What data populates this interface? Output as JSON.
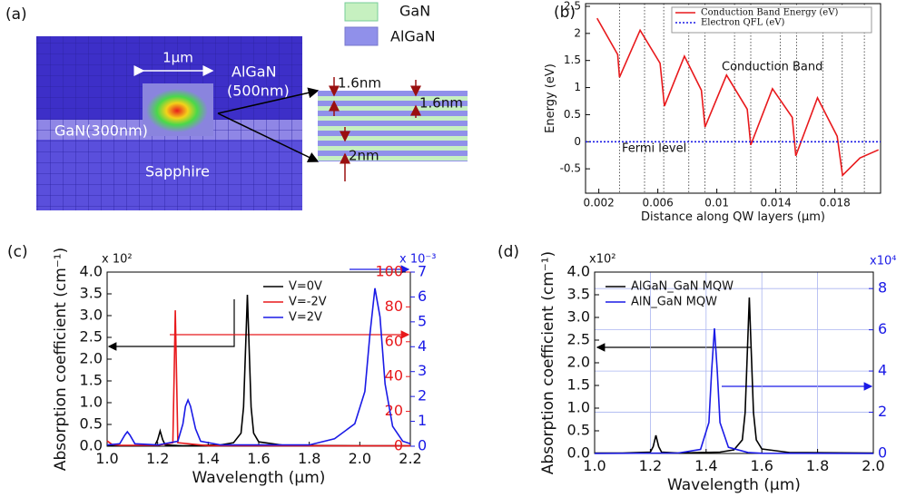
{
  "diagram": {
    "label": "(a)",
    "legend": [
      "GaN",
      "AlGaN"
    ],
    "texts": {
      "width": "1μm",
      "algan": "AlGaN",
      "algan_thickness": "(500nm)",
      "gan": "GaN(300nm)",
      "substrate": "Sapphire",
      "layer1": "1.6nm",
      "layer2": "1.6nm",
      "layer3": "2nm"
    }
  },
  "chart_data": [
    {
      "type": "line",
      "label": "(b)",
      "x_label": "Distance along QW layers (μm)",
      "y_label": "Energy (eV)",
      "annotations": [
        "Conduction Band",
        "Fermi level"
      ],
      "legend": "upper right",
      "xlim": [
        0.0011,
        0.0211
      ],
      "xticks": [
        0.002,
        0.006,
        0.01,
        0.014,
        0.018
      ],
      "ylim": [
        -0.95,
        2.55
      ],
      "yticks": [
        -0.5,
        0,
        0.5,
        1,
        1.5,
        2,
        2.5
      ],
      "vlines": [
        0.0034,
        0.0051,
        0.0064,
        0.0081,
        0.0092,
        0.0112,
        0.0123,
        0.0143,
        0.0154,
        0.0172,
        0.0185,
        0.02
      ],
      "series": [
        {
          "name": "Conduction Band Energy (eV)",
          "color": "#e8191c",
          "style": "solid",
          "x": [
            0.00188,
            0.00328,
            0.0034,
            0.0048,
            0.00615,
            0.00645,
            0.0078,
            0.00895,
            0.0092,
            0.01066,
            0.01206,
            0.0123,
            0.01377,
            0.01511,
            0.01535,
            0.01682,
            0.01816,
            0.01852,
            0.0197,
            0.02096
          ],
          "values": [
            2.28,
            1.61,
            1.19,
            2.06,
            1.45,
            0.66,
            1.58,
            0.95,
            0.27,
            1.23,
            0.6,
            -0.06,
            0.98,
            0.45,
            -0.26,
            0.81,
            0.1,
            -0.62,
            -0.3,
            -0.15
          ]
        },
        {
          "name": "Electron QFL (eV)",
          "color": "#1a1ae6",
          "style": "dotted",
          "x": [
            0.0011,
            0.0211
          ],
          "values": [
            0,
            0
          ]
        }
      ]
    },
    {
      "type": "line",
      "label": "(c)",
      "x_label": "Wavelength (μm)",
      "y_label": "Absorption coefficient (cm⁻¹)",
      "y_multiplier": "x 10²",
      "y3_multiplier": "x 10⁻³",
      "legend": "upper right",
      "xlim": [
        1,
        2.2
      ],
      "xticks": [
        {
          "value": 1,
          "label": "1.0"
        },
        {
          "value": 1.2,
          "label": "1.2"
        },
        {
          "value": 1.4,
          "label": "1.4"
        },
        {
          "value": 1.6,
          "label": "1.6"
        },
        {
          "value": 1.8,
          "label": "1.8"
        },
        {
          "value": 2,
          "label": "2.0"
        },
        {
          "value": 2.2,
          "label": "2.2"
        }
      ],
      "ylim": [
        0,
        4
      ],
      "yticks": [
        {
          "value": 0,
          "label": "0.0"
        },
        0.5,
        {
          "value": 1,
          "label": "1.0"
        },
        1.5,
        {
          "value": 2,
          "label": "2.0"
        },
        2.5,
        {
          "value": 3,
          "label": "3.0"
        },
        3.5,
        {
          "value": 4,
          "label": "4.0"
        }
      ],
      "y2lim": [
        0,
        100
      ],
      "y2ticks": [
        0,
        20,
        40,
        60,
        80,
        100
      ],
      "y2color": "#e8191c",
      "y3lim": [
        0,
        7
      ],
      "y3ticks": [
        0,
        1,
        2,
        3,
        4,
        5,
        6,
        7
      ],
      "y3color": "#1a1ae6",
      "series": [
        {
          "name": "V=0V",
          "color": "#000000",
          "axis": "y",
          "x": [
            1,
            1.1,
            1.19,
            1.2,
            1.21,
            1.22,
            1.23,
            1.3,
            1.45,
            1.5,
            1.53,
            1.54,
            1.55,
            1.555,
            1.56,
            1.57,
            1.58,
            1.6,
            1.7,
            2,
            2.2
          ],
          "values": [
            0.02,
            0.01,
            0.03,
            0.15,
            0.35,
            0.15,
            0.03,
            0.01,
            0.03,
            0.08,
            0.3,
            0.9,
            2.6,
            3.48,
            2.6,
            0.9,
            0.3,
            0.1,
            0.02,
            0.01,
            0.01
          ]
        },
        {
          "name": "V=-2V",
          "color": "#e8191c",
          "axis": "y2",
          "x": [
            1,
            1.02,
            1.05,
            1.2,
            1.26,
            1.265,
            1.27,
            1.275,
            1.28,
            1.4,
            2.2
          ],
          "values": [
            3,
            1,
            0.5,
            0.5,
            2,
            40,
            78,
            40,
            2,
            0.3,
            0.2
          ]
        },
        {
          "name": "V=2V",
          "color": "#1a1ae6",
          "axis": "y3",
          "x": [
            1,
            1.05,
            1.07,
            1.08,
            1.09,
            1.11,
            1.2,
            1.28,
            1.3,
            1.31,
            1.32,
            1.33,
            1.35,
            1.37,
            1.45,
            1.8,
            1.9,
            1.98,
            2.02,
            2.04,
            2.06,
            2.08,
            2.1,
            2.13,
            2.17,
            2.2
          ],
          "values": [
            0.05,
            0.1,
            0.45,
            0.58,
            0.45,
            0.1,
            0.05,
            0.2,
            0.9,
            1.6,
            1.86,
            1.6,
            0.7,
            0.2,
            0.05,
            0.05,
            0.3,
            0.9,
            2.2,
            4.5,
            6.35,
            5.2,
            2.5,
            0.8,
            0.2,
            0.1
          ]
        }
      ]
    },
    {
      "type": "line",
      "label": "(d)",
      "x_label": "Wavelength (μm)",
      "y_label": "Absorption coefficient (cm⁻¹)",
      "y_multiplier": "x10²",
      "y2_multiplier": "x10⁴",
      "legend": "upper left",
      "grid": true,
      "xlim": [
        1,
        2
      ],
      "xticks": [
        {
          "value": 1,
          "label": "1.0"
        },
        {
          "value": 1.2,
          "label": "1.2"
        },
        {
          "value": 1.4,
          "label": "1.4"
        },
        {
          "value": 1.6,
          "label": "1.6"
        },
        {
          "value": 1.8,
          "label": "1.8"
        },
        {
          "value": 2,
          "label": "2.0"
        }
      ],
      "ylim": [
        0,
        4
      ],
      "yticks": [
        {
          "value": 0,
          "label": "0.0"
        },
        0.5,
        {
          "value": 1,
          "label": "1.0"
        },
        1.5,
        {
          "value": 2,
          "label": "2.0"
        },
        2.5,
        {
          "value": 3,
          "label": "3.0"
        },
        3.5,
        {
          "value": 4,
          "label": "4.0"
        }
      ],
      "y2lim": [
        0,
        8.8
      ],
      "y2ticks": [
        0,
        2,
        4,
        6,
        8
      ],
      "y2color": "#1a1ae6",
      "series": [
        {
          "name": "AlGaN_GaN MQW",
          "color": "#000000",
          "axis": "y",
          "x": [
            1,
            1.1,
            1.2,
            1.21,
            1.22,
            1.23,
            1.24,
            1.3,
            1.45,
            1.5,
            1.53,
            1.54,
            1.55,
            1.555,
            1.56,
            1.57,
            1.58,
            1.6,
            1.7,
            2
          ],
          "values": [
            0.01,
            0.01,
            0.03,
            0.15,
            0.4,
            0.15,
            0.03,
            0.01,
            0.03,
            0.08,
            0.3,
            0.9,
            2.6,
            3.44,
            2.6,
            0.9,
            0.3,
            0.1,
            0.02,
            0.01
          ]
        },
        {
          "name": "AlN_GaN MQW",
          "color": "#1a1ae6",
          "axis": "y2",
          "x": [
            1,
            1.3,
            1.38,
            1.41,
            1.42,
            1.43,
            1.44,
            1.45,
            1.48,
            1.55,
            1.6,
            2
          ],
          "values": [
            0,
            0.02,
            0.2,
            1.5,
            4,
            6.07,
            4,
            1.5,
            0.3,
            0.05,
            0.01,
            0
          ]
        }
      ]
    }
  ]
}
